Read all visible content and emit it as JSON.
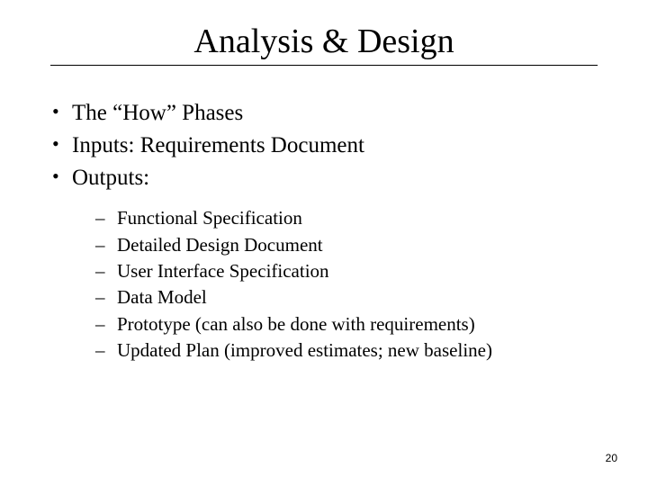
{
  "title": "Analysis & Design",
  "bullets": [
    "The “How” Phases",
    "Inputs: Requirements Document",
    "Outputs:"
  ],
  "sub_bullets": [
    "Functional Specification",
    "Detailed Design Document",
    "User Interface Specification",
    "Data Model",
    "Prototype (can also be done with requirements)",
    "Updated Plan (improved estimates; new baseline)"
  ],
  "page_number": "20",
  "colors": {
    "background": "#ffffff",
    "text": "#000000",
    "rule": "#000000"
  },
  "typography": {
    "title_fontsize": 38,
    "bullet_fontsize": 25,
    "sub_bullet_fontsize": 21,
    "page_num_fontsize": 12,
    "family_serif": "Times New Roman",
    "family_sans": "Arial"
  }
}
